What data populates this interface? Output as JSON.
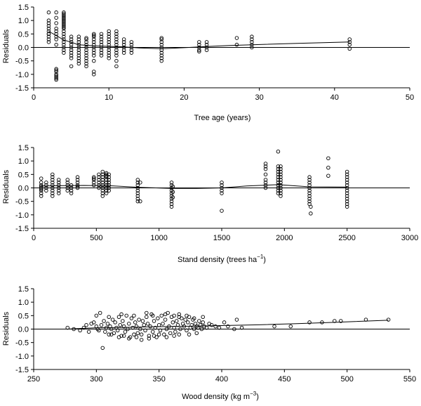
{
  "chart_data": [
    {
      "type": "scatter",
      "id": "age",
      "xlabel": "Tree age (years)",
      "ylabel": "Residuals",
      "xlim": [
        0,
        50
      ],
      "ylim": [
        -1.5,
        1.5
      ],
      "xticks": [
        "0",
        "10",
        "20",
        "30",
        "40",
        "50"
      ],
      "yticks": [
        "-1.5",
        "-1.0",
        "-0.5",
        "0.0",
        "0.5",
        "1.0",
        "1.5"
      ],
      "reference_line_y": 0,
      "groups": [
        {
          "x": 2,
          "y": [
            1.3,
            1.0,
            0.9,
            0.8,
            0.7,
            0.6,
            0.5,
            0.5,
            0.4,
            0.3,
            0.2
          ]
        },
        {
          "x": 3,
          "y": [
            1.3,
            1.1,
            0.9,
            0.7,
            0.6,
            0.5,
            0.4,
            0.3,
            0.1,
            -0.8,
            -0.9,
            -1.0,
            -1.05,
            -1.1,
            -1.15,
            -1.2,
            -0.85
          ]
        },
        {
          "x": 4,
          "y": [
            1.3,
            1.25,
            1.2,
            1.15,
            1.1,
            1.05,
            1.0,
            0.95,
            0.9,
            0.85,
            0.8,
            0.75,
            0.7,
            0.6,
            0.5,
            0.4,
            0.3,
            0.2,
            0.1,
            0.0,
            -0.1,
            -0.2
          ]
        },
        {
          "x": 5,
          "y": [
            0.4,
            0.3,
            0.2,
            0.1,
            0.0,
            -0.1,
            -0.2,
            -0.3,
            -0.4,
            -0.7
          ]
        },
        {
          "x": 6,
          "y": [
            0.4,
            0.3,
            0.2,
            0.1,
            0.0,
            -0.1,
            -0.2,
            -0.3,
            -0.4,
            -0.5,
            -0.6
          ]
        },
        {
          "x": 7,
          "y": [
            0.35,
            0.3,
            0.2,
            0.1,
            0.0,
            -0.1,
            -0.2,
            -0.3,
            -0.4,
            -0.5,
            -0.6,
            -0.7
          ]
        },
        {
          "x": 8,
          "y": [
            0.5,
            0.45,
            0.4,
            0.3,
            0.2,
            0.1,
            0.0,
            -0.1,
            -0.2,
            -0.3,
            -0.5,
            -0.9,
            -1.0
          ]
        },
        {
          "x": 9,
          "y": [
            0.5,
            0.4,
            0.3,
            0.2,
            0.1,
            0.0,
            -0.1,
            -0.2,
            -0.3
          ]
        },
        {
          "x": 10,
          "y": [
            0.6,
            0.5,
            0.4,
            0.3,
            0.2,
            0.1,
            0.0,
            -0.1,
            -0.2,
            -0.3,
            -0.4
          ]
        },
        {
          "x": 11,
          "y": [
            0.6,
            0.5,
            0.4,
            0.3,
            0.2,
            0.1,
            0.0,
            -0.1,
            -0.2,
            -0.3,
            -0.5,
            -0.7
          ]
        },
        {
          "x": 12,
          "y": [
            0.3,
            0.2,
            0.1,
            0.0,
            -0.1,
            -0.2
          ]
        },
        {
          "x": 13,
          "y": [
            0.2,
            0.1,
            0.0,
            -0.1,
            -0.2
          ]
        },
        {
          "x": 17,
          "y": [
            0.35,
            0.3,
            0.2,
            0.1,
            0.0,
            -0.1,
            -0.2,
            -0.3,
            -0.4,
            -0.5
          ]
        },
        {
          "x": 22,
          "y": [
            0.2,
            0.1,
            0.0,
            -0.1,
            -0.15
          ]
        },
        {
          "x": 23,
          "y": [
            0.2,
            0.1,
            0.0,
            -0.1
          ]
        },
        {
          "x": 27,
          "y": [
            0.35,
            0.1
          ]
        },
        {
          "x": 29,
          "y": [
            0.4,
            0.3,
            0.2,
            0.1,
            0.0
          ]
        },
        {
          "x": 42,
          "y": [
            0.3,
            0.2,
            0.1,
            -0.05
          ]
        }
      ],
      "trend": {
        "x": [
          2,
          4,
          6,
          8,
          10,
          12,
          14,
          17,
          20,
          23,
          26,
          29,
          35,
          42
        ],
        "y": [
          0.6,
          0.28,
          0.1,
          0.06,
          0.04,
          0.02,
          -0.02,
          -0.05,
          -0.01,
          0.03,
          0.07,
          0.1,
          0.15,
          0.2
        ]
      }
    },
    {
      "type": "scatter",
      "id": "stand",
      "xlabel": "Stand density (trees ha",
      "xlabel_sup": "−1",
      "xlabel_end": ")",
      "ylabel": "Residuals",
      "xlim": [
        0,
        3000
      ],
      "ylim": [
        -1.5,
        1.5
      ],
      "xticks": [
        "0",
        "500",
        "1000",
        "1500",
        "2000",
        "2500",
        "3000"
      ],
      "yticks": [
        "-1.5",
        "-1.0",
        "-0.5",
        "0.0",
        "0.5",
        "1.0",
        "1.5"
      ],
      "reference_line_y": 0,
      "groups": [
        {
          "x": 60,
          "y": [
            0.35,
            0.2,
            0.1,
            0.05,
            0.0,
            -0.05,
            -0.1,
            -0.2,
            -0.3
          ]
        },
        {
          "x": 100,
          "y": [
            0.2,
            0.1,
            0.0,
            -0.1
          ]
        },
        {
          "x": 150,
          "y": [
            0.5,
            0.4,
            0.3,
            0.2,
            0.1,
            0.0,
            -0.1,
            -0.2,
            -0.3
          ]
        },
        {
          "x": 200,
          "y": [
            0.3,
            0.2,
            0.1,
            0.0,
            -0.1,
            -0.2
          ]
        },
        {
          "x": 270,
          "y": [
            0.3,
            0.2,
            0.1,
            0.0,
            -0.1
          ]
        },
        {
          "x": 300,
          "y": [
            0.1,
            0.0,
            -0.1,
            -0.2
          ]
        },
        {
          "x": 350,
          "y": [
            0.4,
            0.3,
            0.2,
            0.1,
            0.05,
            0.0
          ]
        },
        {
          "x": 480,
          "y": [
            0.4,
            0.35,
            0.3,
            0.2,
            0.1
          ]
        },
        {
          "x": 520,
          "y": [
            0.5,
            0.4,
            0.3,
            0.2,
            0.1,
            0.0
          ]
        },
        {
          "x": 550,
          "y": [
            0.6,
            0.5,
            0.4,
            0.3,
            0.2,
            0.1,
            0.0,
            -0.1,
            -0.2,
            -0.3
          ]
        },
        {
          "x": 580,
          "y": [
            0.55,
            0.5,
            0.45,
            0.4,
            0.3,
            0.2,
            0.1,
            0.0,
            -0.1,
            -0.2
          ]
        },
        {
          "x": 600,
          "y": [
            0.5,
            0.4,
            0.3,
            0.2,
            0.1,
            0.0,
            -0.1
          ]
        },
        {
          "x": 830,
          "y": [
            0.3,
            0.2,
            0.1,
            0.0,
            -0.1,
            -0.2,
            -0.3,
            -0.4,
            -0.5
          ]
        },
        {
          "x": 850,
          "y": [
            0.2,
            -0.5
          ]
        },
        {
          "x": 1100,
          "y": [
            0.2,
            0.1,
            0.0,
            -0.1,
            -0.2,
            -0.3,
            -0.4,
            -0.5,
            -0.6,
            -0.7
          ]
        },
        {
          "x": 1110,
          "y": [
            0.05,
            -0.15,
            -0.35
          ]
        },
        {
          "x": 1500,
          "y": [
            0.2,
            0.1,
            0.0,
            -0.1,
            -0.2,
            -0.85
          ]
        },
        {
          "x": 1850,
          "y": [
            0.9,
            0.8,
            0.7,
            0.5,
            0.3,
            0.2,
            0.1,
            0.0
          ]
        },
        {
          "x": 1950,
          "y": [
            1.35,
            0.8,
            0.7,
            0.6,
            0.5,
            0.4,
            0.3,
            0.2,
            0.1,
            0.0,
            -0.1,
            -0.2
          ]
        },
        {
          "x": 1970,
          "y": [
            0.8,
            0.7,
            0.6,
            0.5,
            0.4,
            0.3,
            0.2,
            0.1,
            0.0,
            -0.1,
            -0.2,
            -0.3
          ]
        },
        {
          "x": 2200,
          "y": [
            0.4,
            0.3,
            0.2,
            0.1,
            0.0,
            -0.1,
            -0.2,
            -0.3,
            -0.4,
            -0.5,
            -0.6
          ]
        },
        {
          "x": 2210,
          "y": [
            -0.7,
            -0.95
          ]
        },
        {
          "x": 2350,
          "y": [
            1.1,
            0.75,
            0.45
          ]
        },
        {
          "x": 2500,
          "y": [
            0.6,
            0.5,
            0.4,
            0.3,
            0.2,
            0.1,
            0.0,
            -0.1,
            -0.2,
            -0.3,
            -0.4,
            -0.5,
            -0.6,
            -0.7
          ]
        }
      ],
      "trend": {
        "x": [
          60,
          200,
          400,
          600,
          850,
          1100,
          1300,
          1500,
          1700,
          1950,
          2200,
          2500
        ],
        "y": [
          0.07,
          0.08,
          0.09,
          0.08,
          0.02,
          -0.02,
          -0.02,
          0.0,
          0.07,
          0.12,
          0.04,
          0.03
        ]
      }
    },
    {
      "type": "scatter",
      "id": "wood",
      "xlabel": "Wood density (kg m",
      "xlabel_sup": "−3",
      "xlabel_end": ")",
      "ylabel": "Residuals",
      "xlim": [
        250,
        550
      ],
      "ylim": [
        -1.5,
        1.5
      ],
      "xticks": [
        "250",
        "300",
        "350",
        "400",
        "450",
        "500",
        "550"
      ],
      "yticks": [
        "-1.5",
        "-1.0",
        "-0.5",
        "0.0",
        "0.5",
        "1.0",
        "1.5"
      ],
      "reference_line_y": 0,
      "points": [
        [
          277,
          0.05
        ],
        [
          282,
          0.0
        ],
        [
          287,
          -0.05
        ],
        [
          290,
          0.05
        ],
        [
          292,
          0.15
        ],
        [
          294,
          -0.1
        ],
        [
          296,
          0.2
        ],
        [
          298,
          0.25
        ],
        [
          300,
          0.1
        ],
        [
          301,
          0.0
        ],
        [
          302,
          -0.05
        ],
        [
          303,
          0.6
        ],
        [
          304,
          0.15
        ],
        [
          305,
          -0.7
        ],
        [
          306,
          0.3
        ],
        [
          307,
          -0.1
        ],
        [
          308,
          0.05
        ],
        [
          309,
          0.2
        ],
        [
          310,
          -0.2
        ],
        [
          311,
          0.1
        ],
        [
          312,
          0.0
        ],
        [
          313,
          0.35
        ],
        [
          314,
          -0.15
        ],
        [
          315,
          0.25
        ],
        [
          316,
          0.05
        ],
        [
          317,
          -0.05
        ],
        [
          318,
          0.45
        ],
        [
          319,
          0.15
        ],
        [
          320,
          -0.25
        ],
        [
          321,
          0.3
        ],
        [
          322,
          0.1
        ],
        [
          323,
          -0.1
        ],
        [
          324,
          0.5
        ],
        [
          325,
          0.0
        ],
        [
          326,
          0.2
        ],
        [
          327,
          -0.3
        ],
        [
          328,
          0.4
        ],
        [
          329,
          0.05
        ],
        [
          330,
          -0.2
        ],
        [
          331,
          0.25
        ],
        [
          332,
          0.1
        ],
        [
          333,
          -0.15
        ],
        [
          334,
          0.35
        ],
        [
          335,
          0.0
        ],
        [
          336,
          -0.4
        ],
        [
          337,
          0.3
        ],
        [
          338,
          0.15
        ],
        [
          339,
          -0.05
        ],
        [
          340,
          0.45
        ],
        [
          341,
          0.2
        ],
        [
          342,
          -0.25
        ],
        [
          343,
          0.1
        ],
        [
          344,
          0.55
        ],
        [
          345,
          -0.1
        ],
        [
          346,
          0.3
        ],
        [
          347,
          0.05
        ],
        [
          348,
          -0.3
        ],
        [
          349,
          0.4
        ],
        [
          350,
          0.15
        ],
        [
          351,
          -0.05
        ],
        [
          352,
          0.5
        ],
        [
          353,
          0.2
        ],
        [
          354,
          -0.2
        ],
        [
          355,
          0.35
        ],
        [
          356,
          0.0
        ],
        [
          357,
          0.6
        ],
        [
          358,
          0.1
        ],
        [
          359,
          -0.15
        ],
        [
          360,
          0.45
        ],
        [
          361,
          0.25
        ],
        [
          362,
          0.05
        ],
        [
          363,
          -0.1
        ],
        [
          364,
          0.3
        ],
        [
          365,
          0.15
        ],
        [
          366,
          0.55
        ],
        [
          367,
          0.0
        ],
        [
          368,
          0.4
        ],
        [
          369,
          0.2
        ],
        [
          370,
          0.1
        ],
        [
          371,
          0.35
        ],
        [
          372,
          -0.05
        ],
        [
          373,
          0.25
        ],
        [
          374,
          0.45
        ],
        [
          375,
          0.05
        ],
        [
          376,
          0.15
        ],
        [
          377,
          0.35
        ],
        [
          378,
          0.0
        ],
        [
          379,
          0.2
        ],
        [
          380,
          0.1
        ],
        [
          381,
          0.05
        ],
        [
          382,
          0.3
        ],
        [
          383,
          0.15
        ],
        [
          384,
          0.0
        ],
        [
          385,
          0.25
        ],
        [
          386,
          0.1
        ],
        [
          388,
          0.05
        ],
        [
          390,
          0.2
        ],
        [
          392,
          0.15
        ],
        [
          395,
          0.1
        ],
        [
          398,
          0.05
        ],
        [
          402,
          0.25
        ],
        [
          405,
          0.1
        ],
        [
          410,
          0.0
        ],
        [
          412,
          0.35
        ],
        [
          416,
          0.05
        ],
        [
          442,
          0.1
        ],
        [
          455,
          0.1
        ],
        [
          470,
          0.25
        ],
        [
          480,
          0.25
        ],
        [
          490,
          0.3
        ],
        [
          495,
          0.3
        ],
        [
          515,
          0.35
        ],
        [
          533,
          0.35
        ],
        [
          300,
          0.5
        ],
        [
          310,
          0.45
        ],
        [
          320,
          0.55
        ],
        [
          330,
          0.5
        ],
        [
          340,
          0.6
        ],
        [
          345,
          0.5
        ],
        [
          355,
          0.55
        ],
        [
          362,
          0.5
        ],
        [
          366,
          0.45
        ],
        [
          372,
          0.5
        ],
        [
          378,
          0.4
        ],
        [
          385,
          0.45
        ],
        [
          312,
          -0.2
        ],
        [
          318,
          -0.3
        ],
        [
          322,
          -0.25
        ],
        [
          326,
          -0.35
        ],
        [
          332,
          -0.3
        ],
        [
          336,
          -0.2
        ],
        [
          342,
          -0.35
        ],
        [
          346,
          -0.25
        ],
        [
          350,
          -0.2
        ],
        [
          356,
          -0.3
        ],
        [
          362,
          -0.25
        ],
        [
          366,
          -0.2
        ],
        [
          374,
          -0.2
        ],
        [
          380,
          -0.15
        ]
      ],
      "trend": {
        "x": [
          277,
          300,
          320,
          340,
          360,
          380,
          400,
          430,
          460,
          490,
          533
        ],
        "y": [
          0.0,
          0.05,
          0.06,
          0.08,
          0.1,
          0.11,
          0.13,
          0.16,
          0.2,
          0.25,
          0.33
        ]
      }
    }
  ]
}
